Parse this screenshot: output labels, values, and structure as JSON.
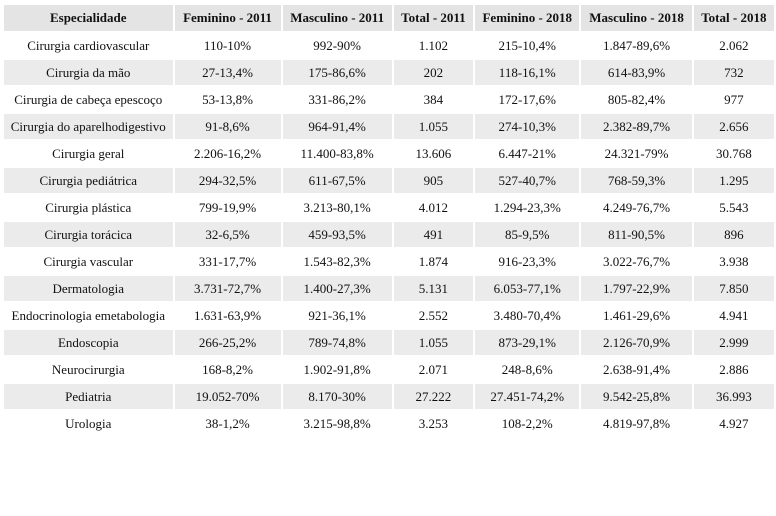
{
  "table": {
    "header": [
      "Especialidade",
      "Feminino - 2011",
      "Masculino - 2011",
      "Total - 2011",
      "Feminino - 2018",
      "Masculino - 2018",
      "Total - 2018"
    ],
    "rows": [
      [
        "Cirurgia cardiovascular",
        "110-10%",
        "992-90%",
        "1.102",
        "215-10,4%",
        "1.847-89,6%",
        "2.062"
      ],
      [
        "Cirurgia da mão",
        "27-13,4%",
        "175-86,6%",
        "202",
        "118-16,1%",
        "614-83,9%",
        "732"
      ],
      [
        "Cirurgia de cabeça epescoço",
        "53-13,8%",
        "331-86,2%",
        "384",
        "172-17,6%",
        "805-82,4%",
        "977"
      ],
      [
        "Cirurgia do aparelhodigestivo",
        "91-8,6%",
        "964-91,4%",
        "1.055",
        "274-10,3%",
        "2.382-89,7%",
        "2.656"
      ],
      [
        "Cirurgia geral",
        "2.206-16,2%",
        "11.400-83,8%",
        "13.606",
        "6.447-21%",
        "24.321-79%",
        "30.768"
      ],
      [
        "Cirurgia pediátrica",
        "294-32,5%",
        "611-67,5%",
        "905",
        "527-40,7%",
        "768-59,3%",
        "1.295"
      ],
      [
        "Cirurgia plástica",
        "799-19,9%",
        "3.213-80,1%",
        "4.012",
        "1.294-23,3%",
        "4.249-76,7%",
        "5.543"
      ],
      [
        "Cirurgia torácica",
        "32-6,5%",
        "459-93,5%",
        "491",
        "85-9,5%",
        "811-90,5%",
        "896"
      ],
      [
        "Cirurgia vascular",
        "331-17,7%",
        "1.543-82,3%",
        "1.874",
        "916-23,3%",
        "3.022-76,7%",
        "3.938"
      ],
      [
        "Dermatologia",
        "3.731-72,7%",
        "1.400-27,3%",
        "5.131",
        "6.053-77,1%",
        "1.797-22,9%",
        "7.850"
      ],
      [
        "Endocrinologia emetabologia",
        "1.631-63,9%",
        "921-36,1%",
        "2.552",
        "3.480-70,4%",
        "1.461-29,6%",
        "4.941"
      ],
      [
        "Endoscopia",
        "266-25,2%",
        "789-74,8%",
        "1.055",
        "873-29,1%",
        "2.126-70,9%",
        "2.999"
      ],
      [
        "Neurocirurgia",
        "168-8,2%",
        "1.902-91,8%",
        "2.071",
        "248-8,6%",
        "2.638-91,4%",
        "2.886"
      ],
      [
        "Pediatria",
        "19.052-70%",
        "8.170-30%",
        "27.222",
        "27.451-74,2%",
        "9.542-25,8%",
        "36.993"
      ],
      [
        "Urologia",
        "38-1,2%",
        "3.215-98,8%",
        "3.253",
        "108-2,2%",
        "4.819-97,8%",
        "4.927"
      ]
    ]
  }
}
